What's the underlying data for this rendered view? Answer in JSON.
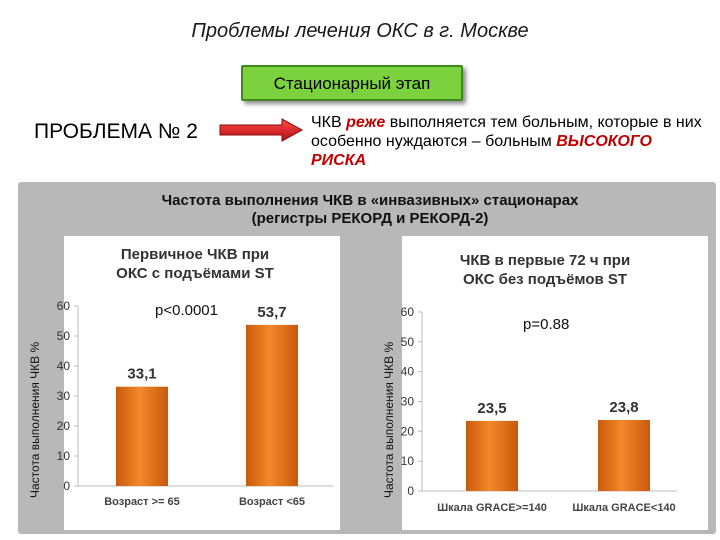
{
  "slide": {
    "title": "Проблемы лечения ОКС в г. Москве",
    "stage_label": "Стационарный этап",
    "problem_label": "ПРОБЛЕМА № 2",
    "desc_pre": "ЧКВ ",
    "desc_em": "реже",
    "desc_mid": " выполняется тем больным, которые в них особенно нуждаются – больным ",
    "desc_hr": "ВЫСОКОГО РИСКА",
    "panel_title_line1": "Частота выполнения ЧКВ в «инвазивных» стационарах",
    "panel_title_line2": "(регистры РЕКОРД и РЕКОРД-2)",
    "colors": {
      "stage_fill": "#7cd13e",
      "arrow": "#d81b1b",
      "bar": "#ef7f22",
      "emphasis": "#c00000"
    }
  },
  "chart_data": [
    {
      "type": "bar",
      "title_line1": "Первичное ЧКВ при",
      "title_line2": "ОКС с подъёмами ST",
      "ylabel": "Частота выполнения ЧКВ %",
      "categories": [
        "Возраст >= 65",
        "Возраст <65"
      ],
      "values": [
        33.1,
        53.7
      ],
      "value_labels": [
        "33,1",
        "53,7"
      ],
      "ylim": [
        0,
        60
      ],
      "yticks": [
        0,
        10,
        20,
        30,
        40,
        50,
        60
      ],
      "annotation": "p<0.0001",
      "grid": false
    },
    {
      "type": "bar",
      "title_line1": "ЧКВ в первые 72 ч при",
      "title_line2": "ОКС без подъёмов ST",
      "ylabel": "Частота выполнения ЧКВ %",
      "categories": [
        "Шкала GRACE>=140",
        "Шкала GRACE<140"
      ],
      "values": [
        23.5,
        23.8
      ],
      "value_labels": [
        "23,5",
        "23,8"
      ],
      "ylim": [
        0,
        60
      ],
      "yticks": [
        0,
        10,
        20,
        30,
        40,
        50,
        60
      ],
      "annotation": "p=0.88",
      "grid": false
    }
  ]
}
